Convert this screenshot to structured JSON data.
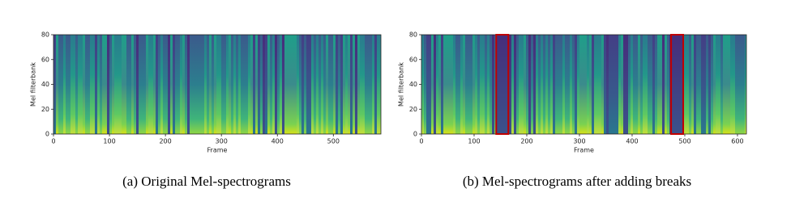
{
  "chart_data": [
    {
      "type": "heatmap",
      "xlabel": "Frame",
      "ylabel": "Mel filterbank",
      "xlim": [
        0,
        585
      ],
      "ylim": [
        0,
        80
      ],
      "xticks": [
        0,
        100,
        200,
        300,
        400,
        500
      ],
      "yticks": [
        0,
        20,
        40,
        60,
        80
      ],
      "caption": "(a) Original Mel-spectrograms"
    },
    {
      "type": "heatmap",
      "xlabel": "Frame",
      "ylabel": "Mel filterbank",
      "xlim": [
        0,
        617
      ],
      "ylim": [
        0,
        80
      ],
      "xticks": [
        0,
        100,
        200,
        300,
        400,
        500,
        600
      ],
      "yticks": [
        0,
        20,
        40,
        60,
        80
      ],
      "breaks": [
        [
          142,
          165
        ],
        [
          474,
          497
        ]
      ],
      "break_color": "#c00000",
      "caption": "(b) Mel-spectrograms after adding breaks"
    }
  ]
}
